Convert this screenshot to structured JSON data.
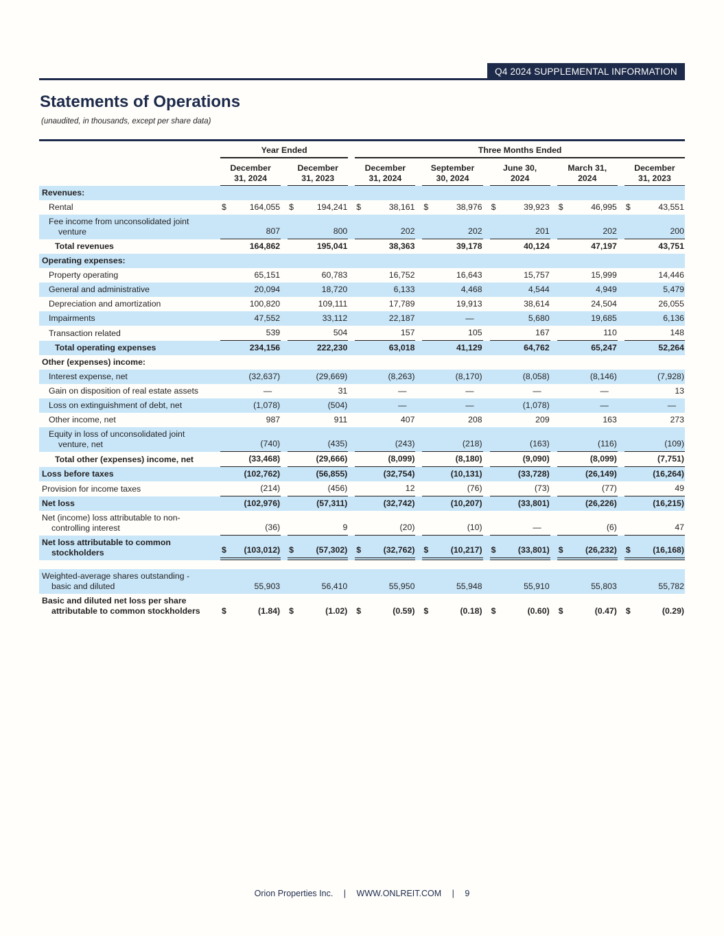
{
  "banner": "Q4 2024 SUPPLEMENTAL INFORMATION",
  "title": "Statements of Operations",
  "subtitle": "(unaudited, in thousands, except per share data)",
  "footer": {
    "company": "Orion Properties Inc.",
    "separator": "|",
    "website": "WWW.ONLREIT.COM",
    "page_number": "9"
  },
  "colors": {
    "navy": "#1d2a4a",
    "stripe_blue": "#c8e6f8",
    "text": "#231f20"
  },
  "table": {
    "dollar_sign": "$",
    "groups": [
      {
        "label": "Year Ended",
        "span": 2
      },
      {
        "label": "Three Months Ended",
        "span": 5
      }
    ],
    "columns": [
      {
        "line1": "December",
        "line2": "31, 2024"
      },
      {
        "line1": "December",
        "line2": "31, 2023"
      },
      {
        "line1": "December",
        "line2": "31, 2024"
      },
      {
        "line1": "September",
        "line2": "30, 2024"
      },
      {
        "line1": "June 30,",
        "line2": "2024"
      },
      {
        "line1": "March 31,",
        "line2": "2024"
      },
      {
        "line1": "December",
        "line2": "31, 2023"
      }
    ],
    "rows": [
      {
        "label": "Revenues:",
        "type": "section",
        "shaded": true,
        "values": null
      },
      {
        "label": "Rental",
        "type": "item",
        "dollar": true,
        "values": [
          "164,055",
          "194,241",
          "38,161",
          "38,976",
          "39,923",
          "46,995",
          "43,551"
        ]
      },
      {
        "label": "Fee income from unconsolidated joint",
        "label2": "venture",
        "type": "item",
        "shaded": true,
        "underline": "single",
        "values": [
          "807",
          "800",
          "202",
          "202",
          "201",
          "202",
          "200"
        ]
      },
      {
        "label": "Total revenues",
        "type": "total",
        "bold": true,
        "values": [
          "164,862",
          "195,041",
          "38,363",
          "39,178",
          "40,124",
          "47,197",
          "43,751"
        ]
      },
      {
        "label": "Operating expenses:",
        "type": "section",
        "shaded": true,
        "values": null
      },
      {
        "label": "Property operating",
        "type": "item",
        "values": [
          "65,151",
          "60,783",
          "16,752",
          "16,643",
          "15,757",
          "15,999",
          "14,446"
        ]
      },
      {
        "label": "General and administrative",
        "type": "item",
        "shaded": true,
        "values": [
          "20,094",
          "18,720",
          "6,133",
          "4,468",
          "4,544",
          "4,949",
          "5,479"
        ]
      },
      {
        "label": "Depreciation and amortization",
        "type": "item",
        "values": [
          "100,820",
          "109,111",
          "17,789",
          "19,913",
          "38,614",
          "24,504",
          "26,055"
        ]
      },
      {
        "label": "Impairments",
        "type": "item",
        "shaded": true,
        "values": [
          "47,552",
          "33,112",
          "22,187",
          "—",
          "5,680",
          "19,685",
          "6,136"
        ]
      },
      {
        "label": "Transaction related",
        "type": "item",
        "underline": "single",
        "values": [
          "539",
          "504",
          "157",
          "105",
          "167",
          "110",
          "148"
        ]
      },
      {
        "label": "Total operating expenses",
        "type": "total",
        "bold": true,
        "shaded": true,
        "values": [
          "234,156",
          "222,230",
          "63,018",
          "41,129",
          "64,762",
          "65,247",
          "52,264"
        ]
      },
      {
        "label": "Other (expenses) income:",
        "type": "section",
        "values": null
      },
      {
        "label": "Interest expense, net",
        "type": "item",
        "shaded": true,
        "values": [
          "(32,637)",
          "(29,669)",
          "(8,263)",
          "(8,170)",
          "(8,058)",
          "(8,146)",
          "(7,928)"
        ]
      },
      {
        "label": "Gain on disposition of real estate assets",
        "type": "item",
        "values": [
          "—",
          "31",
          "—",
          "—",
          "—",
          "—",
          "13"
        ]
      },
      {
        "label": "Loss on extinguishment of debt, net",
        "type": "item",
        "shaded": true,
        "values": [
          "(1,078)",
          "(504)",
          "—",
          "—",
          "(1,078)",
          "—",
          "—"
        ]
      },
      {
        "label": "Other income, net",
        "type": "item",
        "values": [
          "987",
          "911",
          "407",
          "208",
          "209",
          "163",
          "273"
        ]
      },
      {
        "label": "Equity in loss of unconsolidated joint",
        "label2": "venture, net",
        "type": "item",
        "shaded": true,
        "underline": "single",
        "values": [
          "(740)",
          "(435)",
          "(243)",
          "(218)",
          "(163)",
          "(116)",
          "(109)"
        ]
      },
      {
        "label": "Total other (expenses) income, net",
        "type": "total",
        "bold": true,
        "underline": "single",
        "values": [
          "(33,468)",
          "(29,666)",
          "(8,099)",
          "(8,180)",
          "(9,090)",
          "(8,099)",
          "(7,751)"
        ]
      },
      {
        "label": "Loss before taxes",
        "type": "flush",
        "bold": true,
        "shaded": true,
        "values": [
          "(102,762)",
          "(56,855)",
          "(32,754)",
          "(10,131)",
          "(33,728)",
          "(26,149)",
          "(16,264)"
        ]
      },
      {
        "label": "Provision for income taxes",
        "type": "flush",
        "underline": "single",
        "values": [
          "(214)",
          "(456)",
          "12",
          "(76)",
          "(73)",
          "(77)",
          "49"
        ]
      },
      {
        "label": "Net loss",
        "type": "flush",
        "bold": true,
        "shaded": true,
        "values": [
          "(102,976)",
          "(57,311)",
          "(32,742)",
          "(10,207)",
          "(33,801)",
          "(26,226)",
          "(16,215)"
        ]
      },
      {
        "label": "Net (income) loss attributable to non-",
        "label2": "controlling interest",
        "type": "flush",
        "underline": "single",
        "values": [
          "(36)",
          "9",
          "(20)",
          "(10)",
          "—",
          "(6)",
          "47"
        ]
      },
      {
        "label": "Net loss attributable to common",
        "label2": "stockholders",
        "type": "flush",
        "bold": true,
        "shaded": true,
        "dollar": true,
        "underline": "double",
        "values": [
          "(103,012)",
          "(57,302)",
          "(32,762)",
          "(10,217)",
          "(33,801)",
          "(26,232)",
          "(16,168)"
        ]
      },
      {
        "spacer": true
      },
      {
        "label": "Weighted-average shares outstanding -",
        "label2": "basic and diluted",
        "type": "flush",
        "shaded": true,
        "values": [
          "55,903",
          "56,410",
          "55,950",
          "55,948",
          "55,910",
          "55,803",
          "55,782"
        ]
      },
      {
        "label": "Basic and diluted net loss per share",
        "label2": "attributable to common stockholders",
        "type": "flush",
        "bold": true,
        "dollar": true,
        "values": [
          "(1.84)",
          "(1.02)",
          "(0.59)",
          "(0.18)",
          "(0.60)",
          "(0.47)",
          "(0.29)"
        ]
      }
    ]
  }
}
